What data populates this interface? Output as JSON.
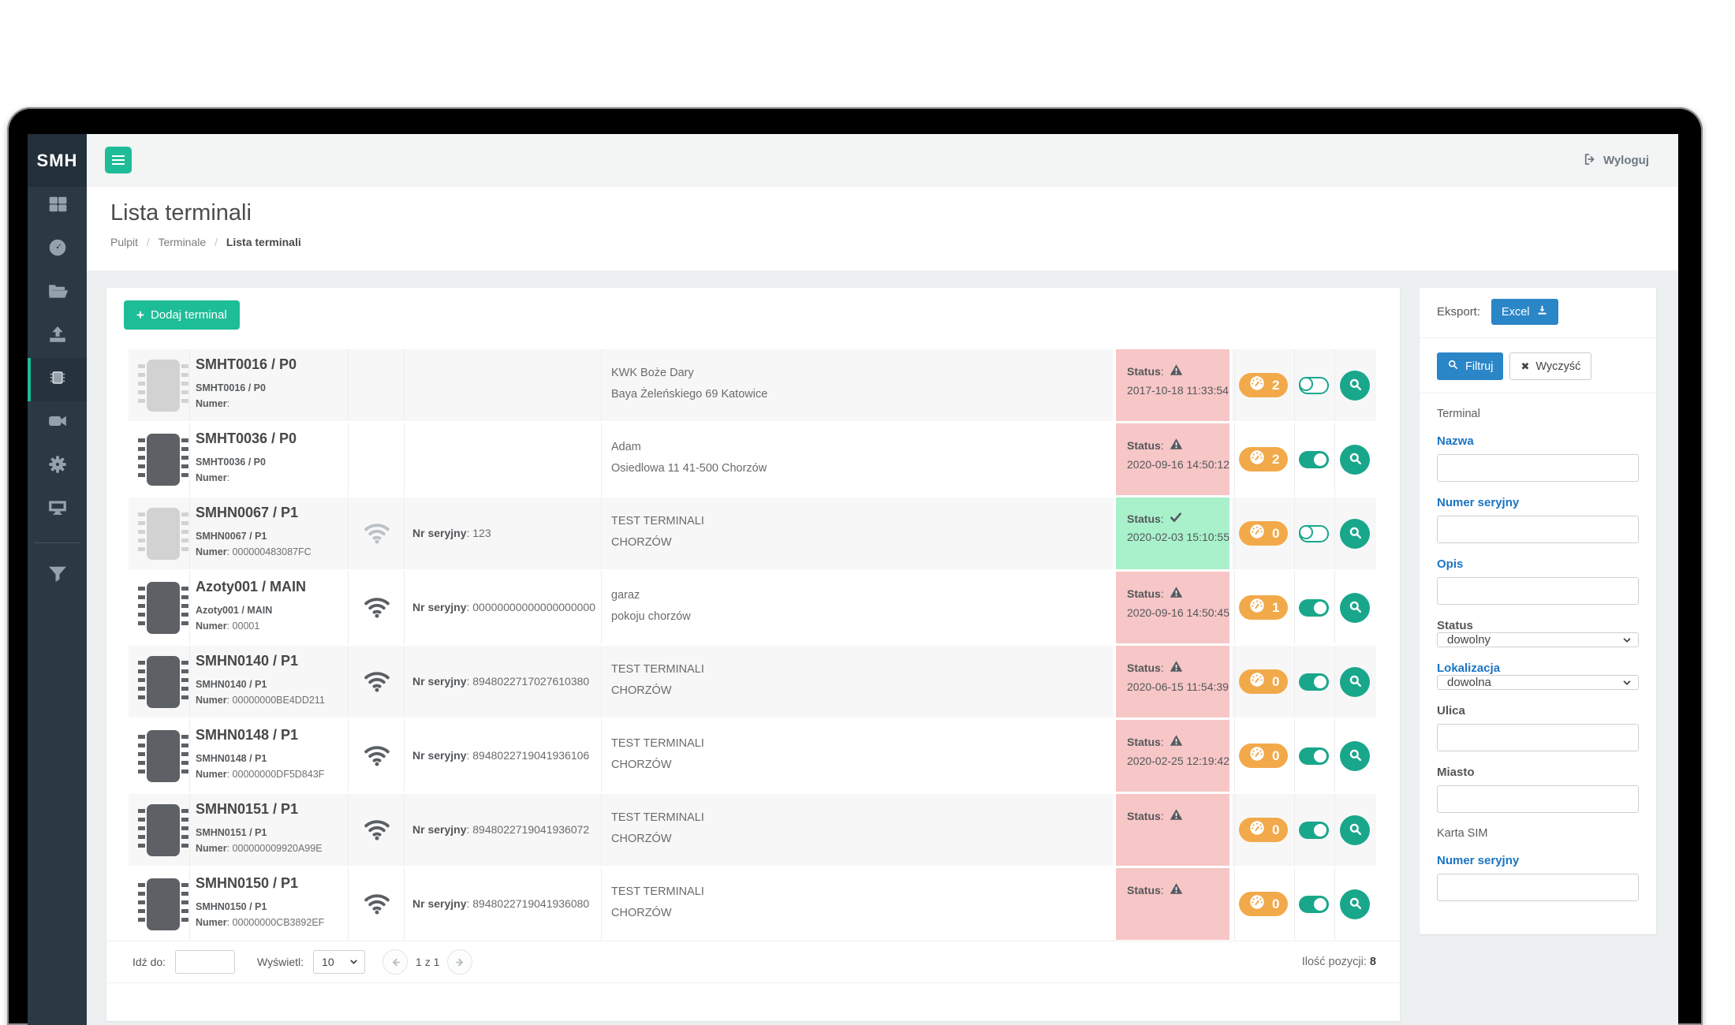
{
  "window": {
    "logo": "SMH",
    "logout_label": "Wyloguj"
  },
  "header": {
    "title": "Lista terminali",
    "breadcrumb": [
      "Pulpit",
      "Terminale",
      "Lista terminali"
    ],
    "breadcrumb_separator": "/"
  },
  "sidebar": {
    "items": [
      {
        "icon": "grid"
      },
      {
        "icon": "dashboard"
      },
      {
        "icon": "folder-open"
      },
      {
        "icon": "upload"
      },
      {
        "icon": "microchip",
        "active": true
      },
      {
        "icon": "video-camera"
      },
      {
        "icon": "gear"
      },
      {
        "icon": "monitor"
      }
    ],
    "bottom_items": [
      {
        "icon": "filter-funnel"
      }
    ]
  },
  "toolbar": {
    "add_terminal_label": "Dodaj terminal"
  },
  "icons": {
    "plus": "+",
    "clear_x": "✖"
  },
  "export": {
    "label": "Eksport:",
    "excel_label": "Excel"
  },
  "filters": {
    "filter_label": "Filtruj",
    "clear_label": "Wyczyść",
    "fields": [
      {
        "type": "heading",
        "label": "Terminal"
      },
      {
        "type": "input",
        "label": "Nazwa",
        "style": "link",
        "value": ""
      },
      {
        "type": "input",
        "label": "Numer seryjny",
        "style": "link",
        "value": ""
      },
      {
        "type": "input",
        "label": "Opis",
        "style": "link",
        "value": ""
      },
      {
        "type": "select",
        "label": "Status",
        "style": "plain",
        "value": "dowolny"
      },
      {
        "type": "select",
        "label": "Lokalizacja",
        "style": "link",
        "value": "dowolna"
      },
      {
        "type": "input",
        "label": "Ulica",
        "style": "plain",
        "value": ""
      },
      {
        "type": "input",
        "label": "Miasto",
        "style": "plain",
        "value": ""
      },
      {
        "type": "heading",
        "label": "Karta SIM"
      },
      {
        "type": "input",
        "label": "Numer seryjny",
        "style": "link",
        "value": ""
      }
    ]
  },
  "table": {
    "serial_label": "Nr seryjny",
    "numer_label": "Numer",
    "status_label": "Status",
    "rows": [
      {
        "title": "SMHT0016 / P0",
        "subtitle": "SMHT0016 / P0",
        "numer": "",
        "wifi": "none",
        "serial": "",
        "address_line1": "KWK Boże Dary",
        "address_line2": "Baya Żeleńskiego 69 Katowice",
        "status_ok": false,
        "status_date": "2017-10-18 11:33:54",
        "badge": "2",
        "toggle_on": false
      },
      {
        "title": "SMHT0036 / P0",
        "subtitle": "SMHT0036 / P0",
        "numer": "",
        "wifi": "none",
        "serial": "",
        "address_line1": "Adam",
        "address_line2": "Osiedlowa 11 41-500 Chorzów",
        "status_ok": false,
        "status_date": "2020-09-16 14:50:12",
        "badge": "2",
        "toggle_on": true
      },
      {
        "title": "SMHN0067 / P1",
        "subtitle": "SMHN0067 / P1",
        "numer": "000000483087FC",
        "wifi": "faded",
        "serial": "123",
        "address_line1": "TEST TERMINALI",
        "address_line2": "CHORZÓW",
        "status_ok": true,
        "status_date": "2020-02-03 15:10:55",
        "badge": "0",
        "toggle_on": false
      },
      {
        "title": "Azoty001 / MAIN",
        "subtitle": "Azoty001 / MAIN",
        "numer": "00001",
        "wifi": "solid",
        "serial": "00000000000000000000",
        "address_line1": "garaz",
        "address_line2": "pokoju chorzów",
        "status_ok": false,
        "status_date": "2020-09-16 14:50:45",
        "badge": "1",
        "toggle_on": true
      },
      {
        "title": "SMHN0140 / P1",
        "subtitle": "SMHN0140 / P1",
        "numer": "00000000BE4DD211",
        "wifi": "solid",
        "serial": "8948022717027610380",
        "address_line1": "TEST TERMINALI",
        "address_line2": "CHORZÓW",
        "status_ok": false,
        "status_date": "2020-06-15 11:54:39",
        "badge": "0",
        "toggle_on": true
      },
      {
        "title": "SMHN0148 / P1",
        "subtitle": "SMHN0148 / P1",
        "numer": "00000000DF5D843F",
        "wifi": "solid",
        "serial": "8948022719041936106",
        "address_line1": "TEST TERMINALI",
        "address_line2": "CHORZÓW",
        "status_ok": false,
        "status_date": "2020-02-25 12:19:42",
        "badge": "0",
        "toggle_on": true
      },
      {
        "title": "SMHN0151 / P1",
        "subtitle": "SMHN0151 / P1",
        "numer": "000000009920A99E",
        "wifi": "solid",
        "serial": "8948022719041936072",
        "address_line1": "TEST TERMINALI",
        "address_line2": "CHORZÓW",
        "status_ok": false,
        "status_date": "",
        "badge": "0",
        "toggle_on": true
      },
      {
        "title": "SMHN0150 / P1",
        "subtitle": "SMHN0150 / P1",
        "numer": "00000000CB3892EF",
        "wifi": "solid",
        "serial": "8948022719041936080",
        "address_line1": "TEST TERMINALI",
        "address_line2": "CHORZÓW",
        "status_ok": false,
        "status_date": "",
        "badge": "0",
        "toggle_on": true
      }
    ]
  },
  "pagination": {
    "goto_label": "Idź do:",
    "show_label": "Wyświetl:",
    "page_size": "10",
    "page_info": "1 z 1",
    "count_label": "Ilość pozycji:",
    "count_value": "8"
  },
  "colors": {
    "accent_green": "#1dbd97",
    "toggle_green": "#19a78b",
    "badge_orange": "#f2a94a",
    "status_error_bg": "#f7c6c6",
    "status_ok_bg": "#a8f1cb",
    "primary_blue": "#2a86c7",
    "label_blue": "#1a74c4",
    "sidebar_bg": "#2b3945"
  }
}
